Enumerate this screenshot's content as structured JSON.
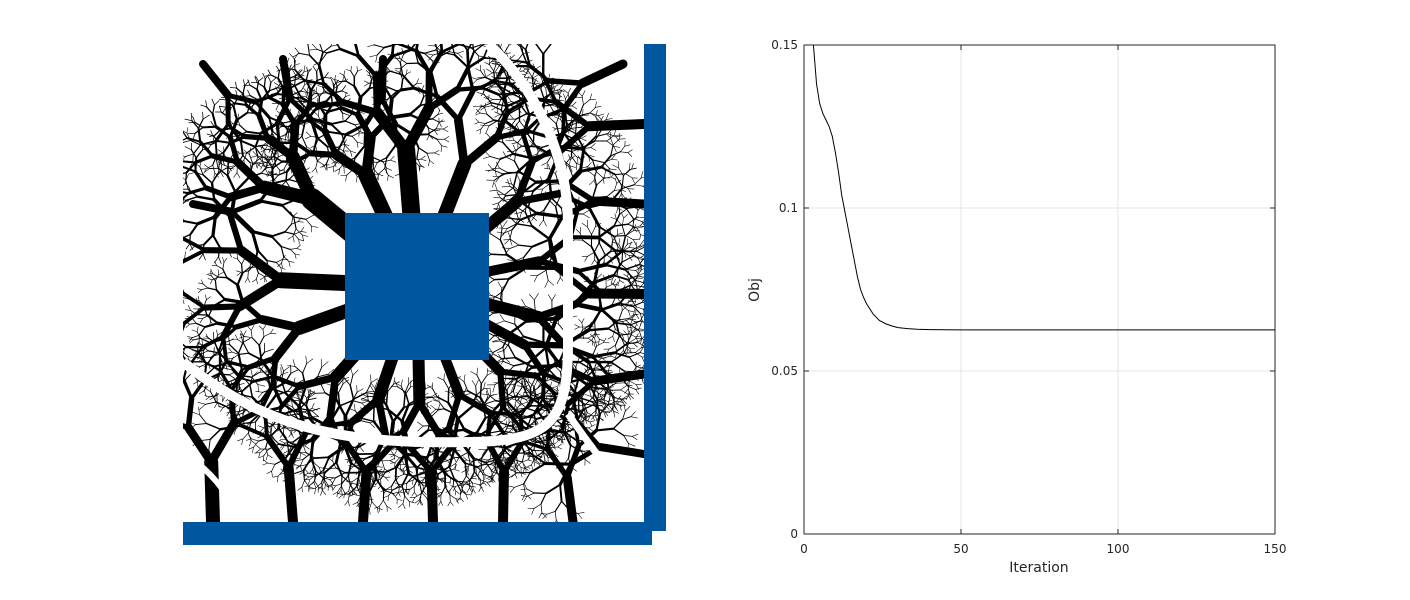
{
  "topology_figure": {
    "support_color": "#0057a0",
    "material_color": "#000000",
    "void_color": "#ffffff"
  },
  "chart_data": {
    "type": "line",
    "title": "",
    "xlabel": "Iteration",
    "ylabel": "Obj",
    "xlim": [
      0,
      150
    ],
    "ylim": [
      0,
      0.15
    ],
    "xticks": [
      "0",
      "50",
      "100",
      "150"
    ],
    "yticks": [
      "0",
      "0.05",
      "0.1",
      "0.15"
    ],
    "grid": true,
    "series": [
      {
        "color": "#000000",
        "x": [
          3,
          4,
          5,
          6,
          7,
          8,
          9,
          10,
          11,
          12,
          13,
          14,
          15,
          16,
          17,
          18,
          19,
          20,
          22,
          24,
          26,
          28,
          30,
          33,
          36,
          40,
          50,
          60,
          80,
          100,
          120,
          150
        ],
        "y": [
          0.15,
          0.138,
          0.132,
          0.129,
          0.127,
          0.125,
          0.122,
          0.117,
          0.111,
          0.104,
          0.099,
          0.094,
          0.089,
          0.084,
          0.079,
          0.075,
          0.0725,
          0.0705,
          0.0675,
          0.0655,
          0.0645,
          0.0638,
          0.0633,
          0.063,
          0.0628,
          0.0627,
          0.0626,
          0.0626,
          0.0626,
          0.0626,
          0.0626,
          0.0626
        ]
      }
    ]
  }
}
